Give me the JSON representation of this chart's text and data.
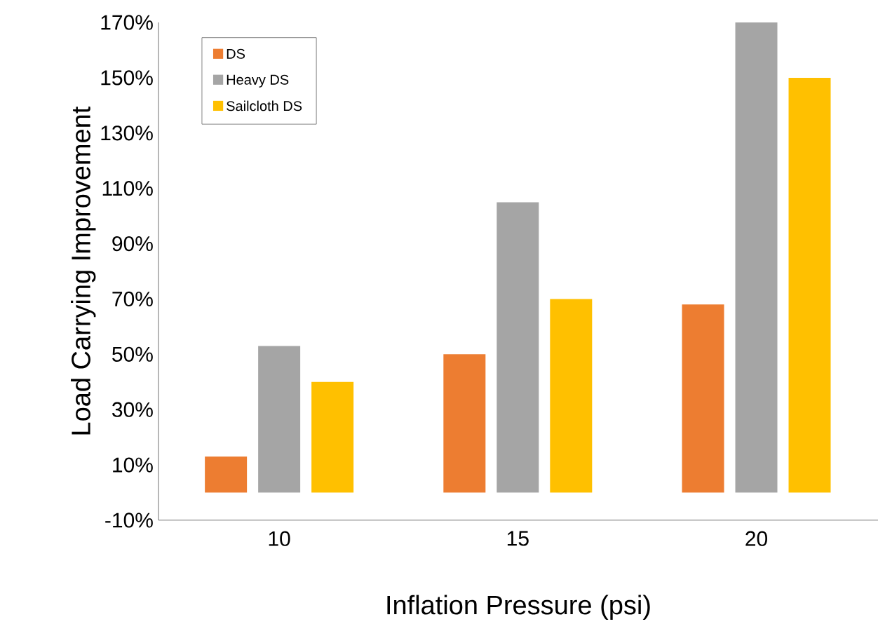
{
  "chart_data": {
    "type": "bar",
    "xlabel": "Inflation Pressure (psi)",
    "ylabel": "Load Carrying Improvement",
    "categories": [
      "10",
      "15",
      "20"
    ],
    "series": [
      {
        "name": "DS",
        "color": "#ed7d31",
        "values": [
          13,
          50,
          68
        ]
      },
      {
        "name": "Heavy DS",
        "color": "#a5a5a5",
        "values": [
          53,
          105,
          170
        ]
      },
      {
        "name": "Sailcloth DS",
        "color": "#ffc000",
        "values": [
          40,
          70,
          150
        ]
      }
    ],
    "ylim": [
      -10,
      170
    ],
    "yticks": [
      {
        "value": -10,
        "label": "-10%"
      },
      {
        "value": 10,
        "label": "10%"
      },
      {
        "value": 30,
        "label": "30%"
      },
      {
        "value": 50,
        "label": "50%"
      },
      {
        "value": 70,
        "label": "70%"
      },
      {
        "value": 90,
        "label": "90%"
      },
      {
        "value": 110,
        "label": "110%"
      },
      {
        "value": 130,
        "label": "130%"
      },
      {
        "value": 150,
        "label": "150%"
      },
      {
        "value": 170,
        "label": "170%"
      }
    ],
    "grid": false,
    "legend": "top left"
  }
}
